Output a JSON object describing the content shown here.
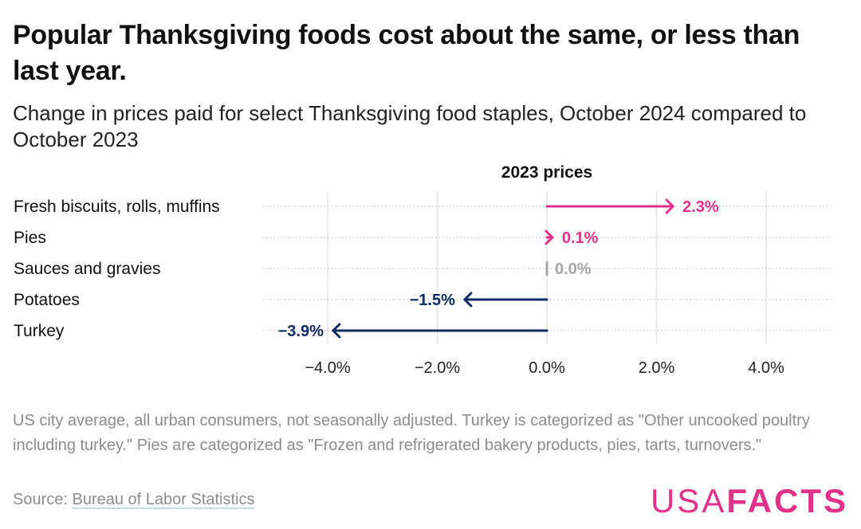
{
  "title": "Popular Thanksgiving foods cost about the same, or less than last year.",
  "subtitle": "Change in prices paid for select Thanksgiving food staples, October 2024 compared to October 2023",
  "notes": "US city average, all urban consumers, not seasonally adjusted. Turkey is categorized as \"Other uncooked poultry including turkey.\" Pies are categorized as \"Frozen and refrigerated bakery products, pies, tarts, turnovers.\"",
  "source": {
    "prefix": "Source: ",
    "link_text": "Bureau of Labor Statistics"
  },
  "logo": {
    "part1": "USA",
    "part2": "FACTS"
  },
  "colors": {
    "increase": "#e2318b",
    "decrease": "#0f2b63",
    "neutral": "#a6a6a6",
    "grid": "#e4e4e4"
  },
  "chart_data": {
    "type": "arrow",
    "title": "2023 prices",
    "categories": [
      "Fresh biscuits, rolls, muffins",
      "Pies",
      "Sauces and gravies",
      "Potatoes",
      "Turkey"
    ],
    "values": [
      2.3,
      0.1,
      0.0,
      -1.5,
      -3.9
    ],
    "value_labels": [
      "2.3%",
      "0.1%",
      "0.0%",
      "−1.5%",
      "−3.9%"
    ],
    "baseline": 0,
    "xlim": [
      -5.2,
      5.2
    ],
    "x_ticks": [
      -4,
      -2,
      0,
      2,
      4
    ],
    "x_tick_labels": [
      "−4.0%",
      "−2.0%",
      "0.0%",
      "2.0%",
      "4.0%"
    ],
    "grid": true
  }
}
